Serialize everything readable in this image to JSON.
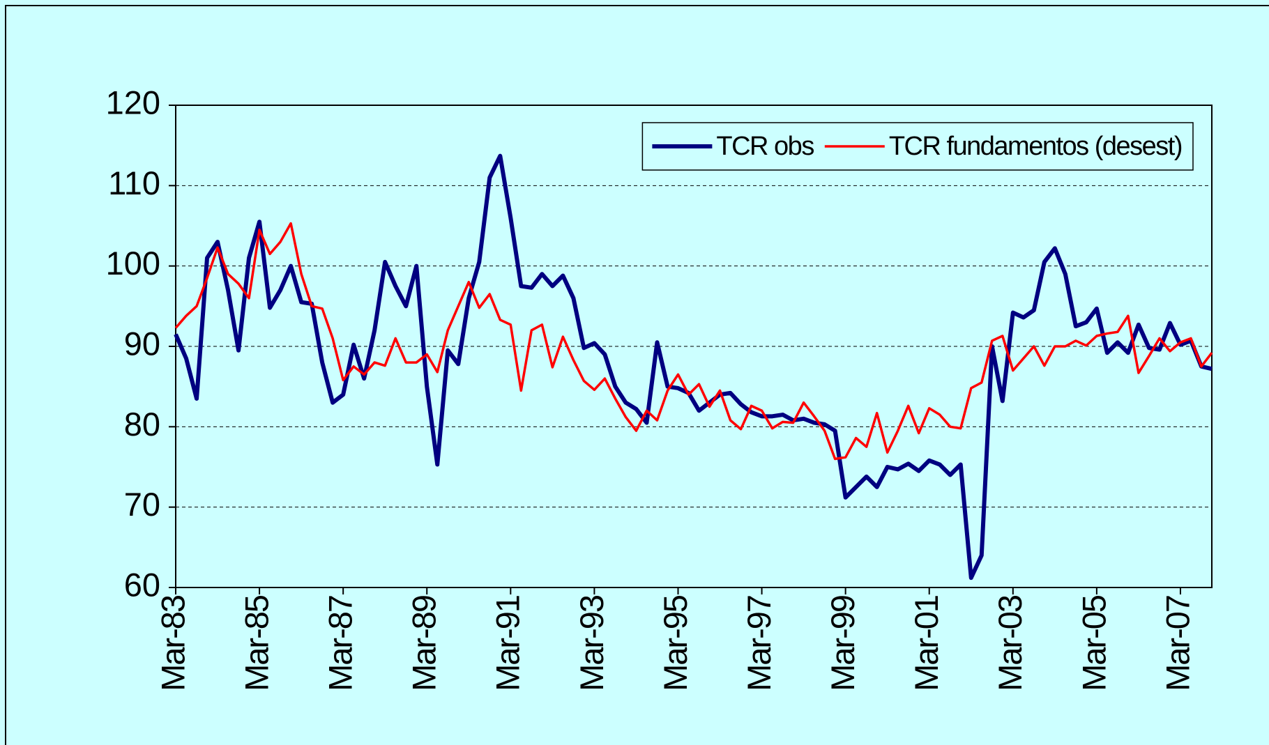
{
  "chart_data": {
    "type": "line",
    "categories": [
      "Mar-83",
      null,
      null,
      null,
      null,
      null,
      null,
      null,
      "Mar-85",
      null,
      null,
      null,
      null,
      null,
      null,
      null,
      "Mar-87",
      null,
      null,
      null,
      null,
      null,
      null,
      null,
      "Mar-89",
      null,
      null,
      null,
      null,
      null,
      null,
      null,
      "Mar-91",
      null,
      null,
      null,
      null,
      null,
      null,
      null,
      "Mar-93",
      null,
      null,
      null,
      null,
      null,
      null,
      null,
      "Mar-95",
      null,
      null,
      null,
      null,
      null,
      null,
      null,
      "Mar-97",
      null,
      null,
      null,
      null,
      null,
      null,
      null,
      "Mar-99",
      null,
      null,
      null,
      null,
      null,
      null,
      null,
      "Mar-01",
      null,
      null,
      null,
      null,
      null,
      null,
      null,
      "Mar-03",
      null,
      null,
      null,
      null,
      null,
      null,
      null,
      "Mar-05",
      null,
      null,
      null,
      null,
      null,
      null,
      null,
      "Mar-07",
      null,
      null,
      null
    ],
    "series": [
      {
        "name": "TCR obs",
        "color": "#000080",
        "values": [
          91.5,
          88.5,
          83.5,
          101,
          103,
          97,
          89.5,
          101,
          105.5,
          94.8,
          97,
          100,
          95.5,
          95.3,
          88,
          83,
          84,
          90.2,
          86,
          92,
          100.5,
          97.5,
          95,
          100,
          85,
          75.3,
          89.5,
          87.8,
          96,
          100.5,
          111,
          113.7,
          106,
          97.5,
          97.3,
          99,
          97.5,
          98.8,
          96,
          89.8,
          90.4,
          89,
          85,
          83,
          82.2,
          80.5,
          90.5,
          85,
          84.8,
          84.2,
          82,
          83,
          84,
          84.2,
          82.8,
          81.8,
          81.3,
          81.3,
          81.5,
          80.8,
          81,
          80.5,
          80.3,
          79.5,
          71.2,
          72.5,
          73.8,
          72.5,
          75,
          74.7,
          75.4,
          74.5,
          75.8,
          75.3,
          74,
          75.3,
          61.2,
          64,
          90,
          83.2,
          94.2,
          93.6,
          94.5,
          100.5,
          102.2,
          99,
          92.5,
          93,
          94.7,
          89.2,
          90.5,
          89.2,
          92.7,
          89.8,
          89.6,
          92.9,
          90.2,
          90.7,
          87.5,
          87.2
        ]
      },
      {
        "name": "TCR fundamentos (desest)",
        "color": "#ff0000",
        "values": [
          92.3,
          93.8,
          95,
          98.5,
          102.3,
          99,
          97.8,
          96,
          104.5,
          101.5,
          103,
          105.3,
          99,
          95,
          94.7,
          91,
          85.8,
          87.5,
          86.5,
          88,
          87.6,
          91,
          88,
          88,
          89,
          86.8,
          92,
          95,
          98,
          94.8,
          96.5,
          93.3,
          92.7,
          84.5,
          92,
          92.7,
          87.4,
          91.2,
          88.3,
          85.7,
          84.6,
          86,
          83.5,
          81.2,
          79.5,
          82,
          80.8,
          84.5,
          86.5,
          84,
          85.3,
          82.5,
          84.5,
          80.8,
          79.7,
          82.6,
          82,
          79.8,
          80.6,
          80.5,
          83,
          81.3,
          79.5,
          76,
          76.2,
          78.6,
          77.5,
          81.7,
          76.8,
          79.5,
          82.6,
          79.2,
          82.3,
          81.5,
          80,
          79.8,
          84.8,
          85.5,
          90.7,
          91.3,
          87,
          88.5,
          90,
          87.6,
          90,
          90,
          90.7,
          90.1,
          91.3,
          91.6,
          91.8,
          93.8,
          86.7,
          88.8,
          91,
          89.4,
          90.5,
          91,
          87.5,
          89.2
        ]
      }
    ],
    "ylim": [
      60,
      120
    ],
    "yticks": [
      60,
      70,
      80,
      90,
      100,
      110,
      120
    ],
    "grid": true,
    "legend": "top-right"
  }
}
